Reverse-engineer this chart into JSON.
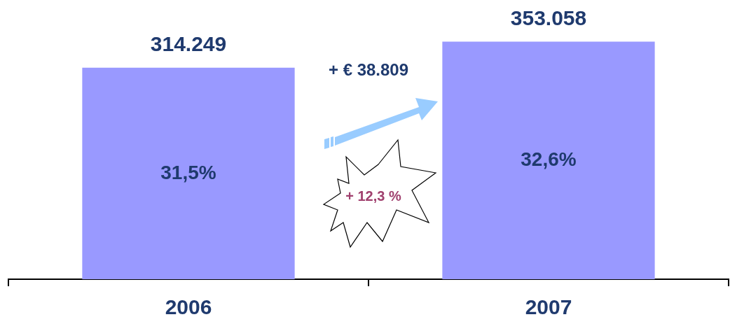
{
  "chart_data": {
    "type": "bar",
    "categories": [
      "2006",
      "2007"
    ],
    "values": [
      314249,
      353058
    ],
    "color": "#9999ff",
    "value_labels": [
      "314.249",
      "353.058"
    ],
    "annotations": [
      "31,5%",
      "32,6%",
      "+ € 38.809",
      "+ 12,3 %"
    ],
    "grid": false,
    "legend": false
  }
}
